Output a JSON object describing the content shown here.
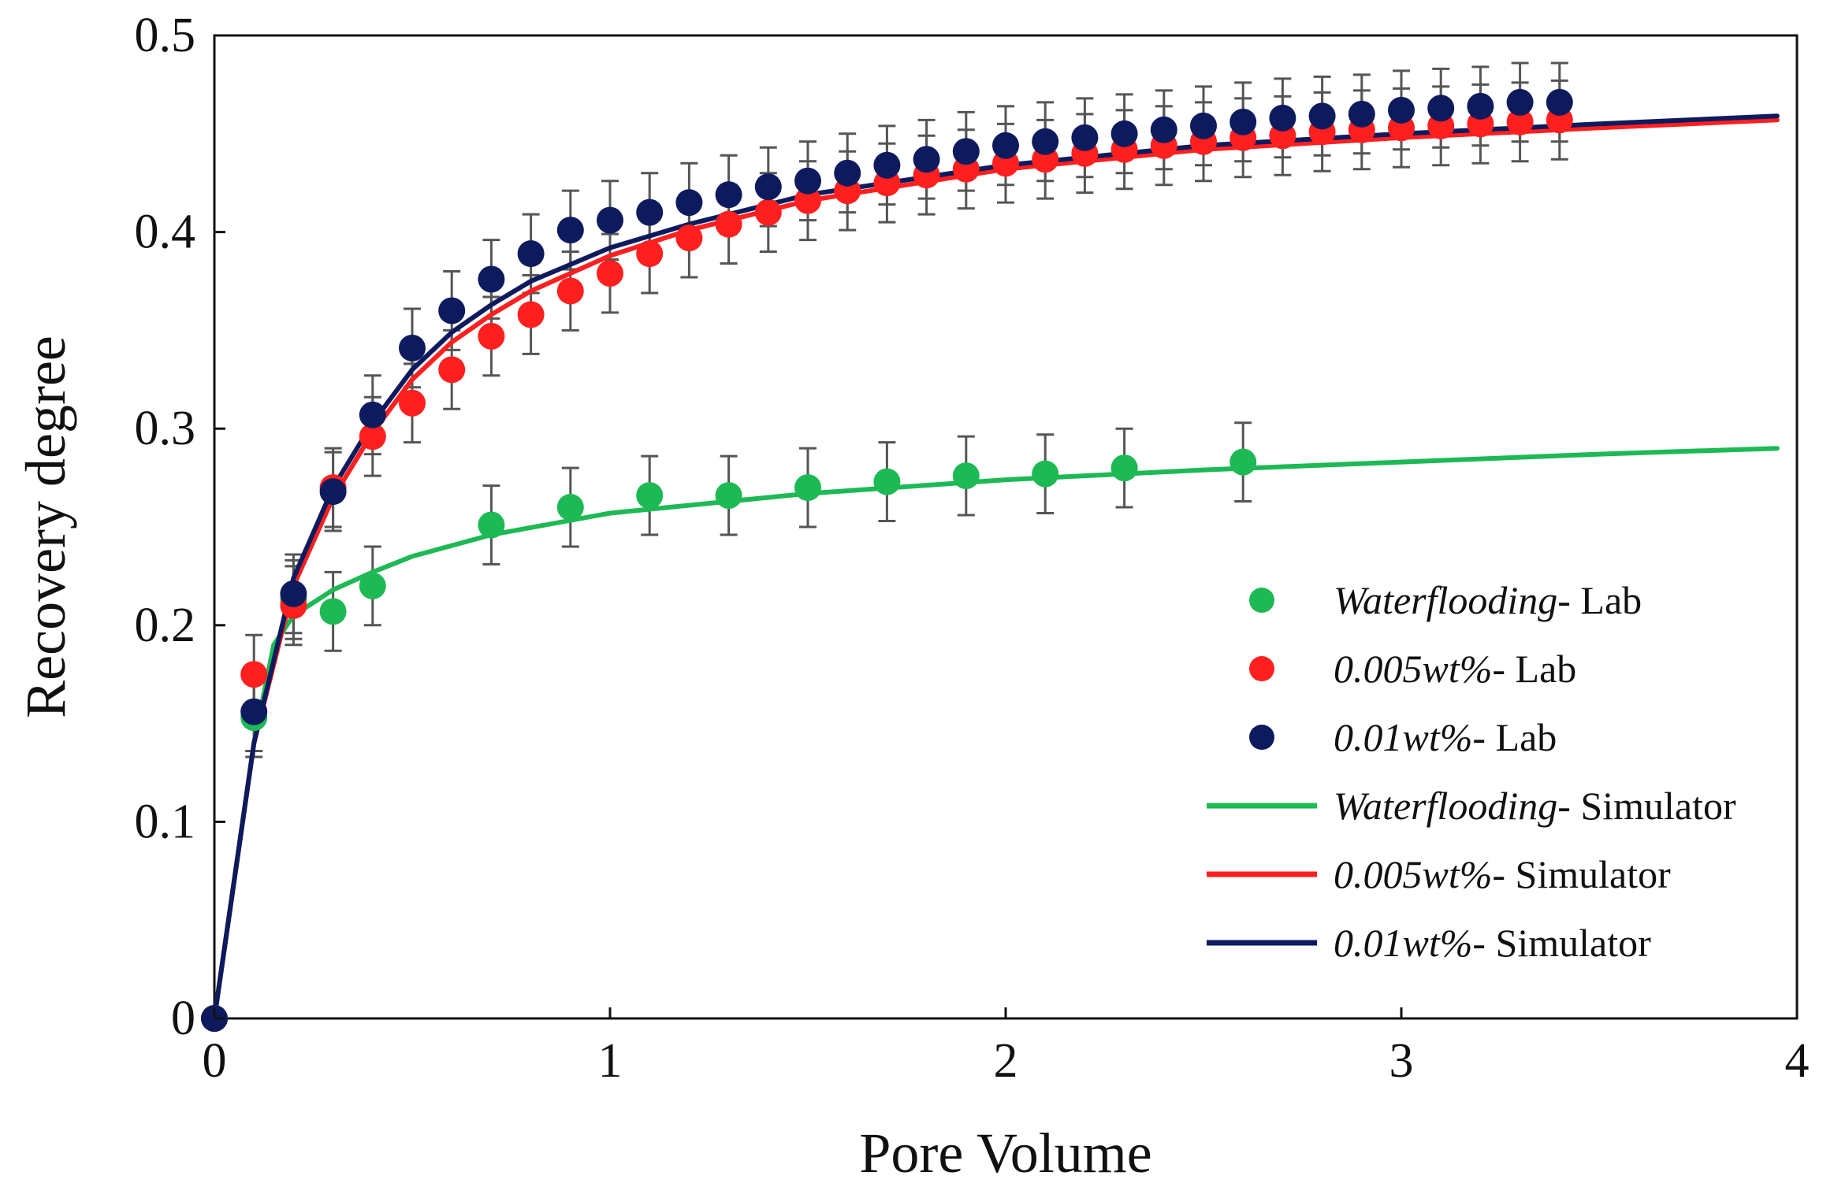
{
  "chart_data": {
    "type": "scatter",
    "title": "",
    "xlabel": "Pore Volume",
    "ylabel": "Recovery degree",
    "xlim": [
      0,
      4
    ],
    "ylim": [
      0,
      0.5
    ],
    "xticks": [
      0,
      1,
      2,
      3,
      4
    ],
    "yticks": [
      0,
      0.1,
      0.2,
      0.3,
      0.4,
      0.5
    ],
    "xtick_labels": [
      "0",
      "1",
      "2",
      "3",
      "4"
    ],
    "ytick_labels": [
      "0",
      "0.1",
      "0.2",
      "0.3",
      "0.4",
      "0.5"
    ],
    "grid": false,
    "legend_position": "right",
    "series": [
      {
        "name": "Waterflooding- Lab",
        "label_em": "Waterflooding",
        "label_rest": "- Lab",
        "kind": "scatter",
        "color": "#1db954",
        "error": 0.02,
        "x": [
          0,
          0.1,
          0.2,
          0.3,
          0.4,
          0.7,
          0.9,
          1.1,
          1.3,
          1.5,
          1.7,
          1.9,
          2.1,
          2.3,
          2.6
        ],
        "y": [
          0,
          0.153,
          0.213,
          0.207,
          0.22,
          0.251,
          0.26,
          0.266,
          0.266,
          0.27,
          0.273,
          0.276,
          0.277,
          0.28,
          0.283
        ]
      },
      {
        "name": "0.005wt%- Lab",
        "label_em": "0.005wt%",
        "label_rest": "- Lab",
        "kind": "scatter",
        "color": "#ff1f1f",
        "error": 0.02,
        "x": [
          0,
          0.1,
          0.2,
          0.3,
          0.4,
          0.5,
          0.6,
          0.7,
          0.8,
          0.9,
          1.0,
          1.1,
          1.2,
          1.3,
          1.4,
          1.5,
          1.6,
          1.7,
          1.8,
          1.9,
          2.0,
          2.1,
          2.2,
          2.3,
          2.4,
          2.5,
          2.6,
          2.7,
          2.8,
          2.9,
          3.0,
          3.1,
          3.2,
          3.3,
          3.4
        ],
        "y": [
          0,
          0.175,
          0.21,
          0.27,
          0.296,
          0.313,
          0.33,
          0.347,
          0.358,
          0.37,
          0.379,
          0.389,
          0.397,
          0.404,
          0.41,
          0.416,
          0.421,
          0.425,
          0.429,
          0.432,
          0.435,
          0.437,
          0.44,
          0.442,
          0.444,
          0.446,
          0.448,
          0.449,
          0.451,
          0.452,
          0.453,
          0.454,
          0.455,
          0.456,
          0.457
        ]
      },
      {
        "name": "0.01wt%- Lab",
        "label_em": "0.01wt%",
        "label_rest": "- Lab",
        "kind": "scatter",
        "color": "#0d1b5e",
        "error": 0.02,
        "x": [
          0,
          0.1,
          0.2,
          0.3,
          0.4,
          0.5,
          0.6,
          0.7,
          0.8,
          0.9,
          1.0,
          1.1,
          1.2,
          1.3,
          1.4,
          1.5,
          1.6,
          1.7,
          1.8,
          1.9,
          2.0,
          2.1,
          2.2,
          2.3,
          2.4,
          2.5,
          2.6,
          2.7,
          2.8,
          2.9,
          3.0,
          3.1,
          3.2,
          3.3,
          3.4
        ],
        "y": [
          0,
          0.156,
          0.216,
          0.268,
          0.307,
          0.341,
          0.36,
          0.376,
          0.389,
          0.401,
          0.406,
          0.41,
          0.415,
          0.419,
          0.423,
          0.426,
          0.43,
          0.434,
          0.437,
          0.441,
          0.444,
          0.446,
          0.448,
          0.45,
          0.452,
          0.454,
          0.456,
          0.458,
          0.459,
          0.46,
          0.462,
          0.463,
          0.464,
          0.466,
          0.466
        ]
      },
      {
        "name": "Waterflooding- Simulator",
        "label_em": "Waterflooding",
        "label_rest": "- Simulator",
        "kind": "line",
        "color": "#1db954",
        "x": [
          0,
          0.1,
          0.15,
          0.2,
          0.3,
          0.4,
          0.5,
          0.7,
          1.0,
          1.5,
          2.0,
          2.5,
          3.0,
          3.5,
          3.95
        ],
        "y": [
          0,
          0.14,
          0.19,
          0.205,
          0.218,
          0.227,
          0.235,
          0.246,
          0.257,
          0.267,
          0.274,
          0.279,
          0.283,
          0.287,
          0.29
        ]
      },
      {
        "name": "0.005wt%- Simulator",
        "label_em": "0.005wt%",
        "label_rest": "- Simulator",
        "kind": "line",
        "color": "#ff1f1f",
        "x": [
          0,
          0.1,
          0.2,
          0.3,
          0.4,
          0.5,
          0.6,
          0.7,
          0.8,
          1.0,
          1.2,
          1.5,
          2.0,
          2.5,
          3.0,
          3.5,
          3.95
        ],
        "y": [
          0,
          0.14,
          0.22,
          0.265,
          0.298,
          0.325,
          0.344,
          0.358,
          0.37,
          0.388,
          0.401,
          0.416,
          0.432,
          0.442,
          0.448,
          0.453,
          0.457
        ]
      },
      {
        "name": "0.01wt%- Simulator",
        "label_em": "0.01wt%",
        "label_rest": "- Simulator",
        "kind": "line",
        "color": "#0d1b5e",
        "x": [
          0,
          0.1,
          0.2,
          0.3,
          0.4,
          0.5,
          0.6,
          0.7,
          0.8,
          1.0,
          1.2,
          1.5,
          2.0,
          2.5,
          3.0,
          3.5,
          3.95
        ],
        "y": [
          0,
          0.14,
          0.224,
          0.27,
          0.303,
          0.33,
          0.349,
          0.363,
          0.375,
          0.392,
          0.404,
          0.419,
          0.434,
          0.444,
          0.45,
          0.455,
          0.459
        ]
      }
    ]
  }
}
